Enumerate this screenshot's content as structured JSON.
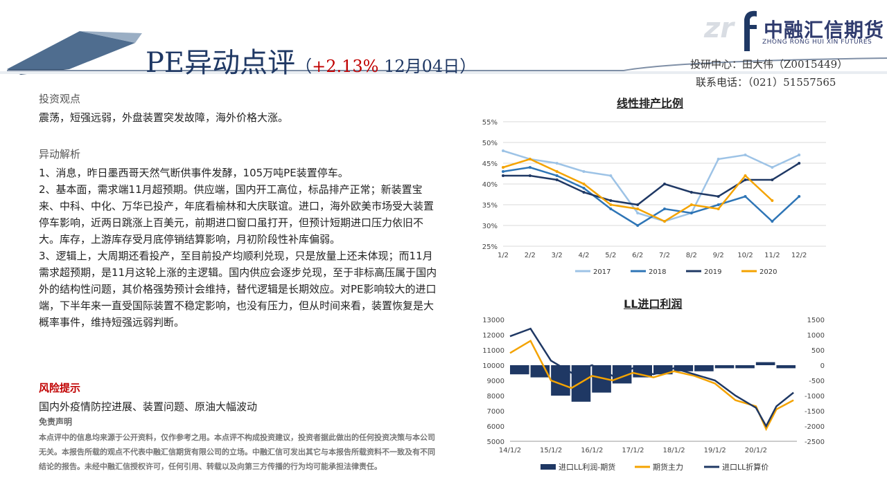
{
  "header": {
    "title": "PE异动点评",
    "paren_open": "（",
    "change": "+2.13%",
    "date": " 12月04日",
    "paren_close": "）",
    "logo_mark": "zr",
    "logo_name": "中融汇信期货",
    "logo_sub": "ZHONG RONG HUI XIN FUTURES",
    "research_line": "投研中心：田大伟（Z0015449）",
    "phone_line": "联系电话：（021）51557565"
  },
  "content": {
    "view_heading": "投资观点",
    "view_text": "震荡，短强远弱，外盘装置突发故障，海外价格大涨。",
    "analysis_heading": "异动解析",
    "analysis_points": [
      "1、消息，昨日墨西哥天然气断供事件发酵，105万吨PE装置停车。",
      "2、基本面，需求端11月超预期。供应端，国内开工高位，标品排产正常；新装置宝来、中科、中化、万华已投产，年底看榆林和大庆联谊。进口，海外欧美市场受大装置停车影响，近两日跳涨上百美元，前期进口窗口虽打开，但预计短期进口压力依旧不大。库存，上游库存受月底停销结算影响，月初阶段性补库偏弱。",
      "3、逻辑上，大周期还看投产，至目前投产均顺利兑现，只是放量上还未体现；而11月需求超预期，是11月这轮上涨的主逻辑。国内供应会逐步兑现，至于非标高压属于国内外的结构性问题，其价格强势预计会维持，替代逻辑是长期效应。对PE影响较大的进口端，下半年来一直受国际装置不稳定影响，也没有压力，但从时间来看，装置恢复是大概率事件，维持短强远弱判断。"
    ],
    "risk_heading": "风险提示",
    "risk_text": "国内外疫情防控进展、装置问题、原油大幅波动",
    "disclaimer_heading": "免责声明",
    "disclaimer_text": "本点评中的信息均来源于公开资料，仅作参考之用。本点评不构成投资建议，投资者据此做出的任何投资决策与本公司无关。本报告所载的观点不代表中融汇信期货有限公司的立场。中融汇信可发出其它与本报告所载资料不一致及有不同结论的报告。未经中融汇信授权许可，任何引用、转载以及向第三方传播的行为均可能承担法律责任。"
  },
  "colors": {
    "title_navy": "#1f3864",
    "accent_red": "#c00000",
    "s2017": "#9dc3e6",
    "s2018": "#2e75b6",
    "s2019": "#1f3864",
    "s2020": "#f4a300",
    "profit_bar": "#1f3864",
    "futures_line": "#f4a300",
    "import_line": "#1f3864"
  },
  "chart_data": [
    {
      "type": "line",
      "title": "线性排产比例",
      "categories": [
        "1/2",
        "2/2",
        "3/2",
        "4/2",
        "5/2",
        "6/2",
        "7/2",
        "8/2",
        "9/2",
        "10/2",
        "11/2",
        "12/2"
      ],
      "ylim": [
        25,
        55
      ],
      "y_ticks": [
        "25%",
        "30%",
        "35%",
        "40%",
        "45%",
        "50%",
        "55%"
      ],
      "legend_position": "bottom",
      "series": [
        {
          "name": "2017",
          "values": [
            48,
            46,
            45,
            43,
            42,
            33,
            31,
            33,
            46,
            47,
            44,
            47
          ]
        },
        {
          "name": "2018",
          "values": [
            43,
            44,
            42,
            39,
            34,
            30,
            34,
            33,
            35,
            37,
            31,
            37
          ]
        },
        {
          "name": "2019",
          "values": [
            42,
            42,
            41,
            38,
            36,
            35,
            40,
            38,
            37,
            41,
            41,
            45
          ]
        },
        {
          "name": "2020",
          "values": [
            44,
            46,
            43,
            40,
            35,
            34,
            31,
            35,
            34,
            42,
            36,
            null
          ]
        }
      ]
    },
    {
      "type": "bar+line",
      "title": "LL进口利润",
      "x_ticks": [
        "14/1/2",
        "15/1/2",
        "16/1/2",
        "17/1/2",
        "18/1/2",
        "19/1/2",
        "20/1/2"
      ],
      "ylim_left": [
        5000,
        13000
      ],
      "ylim_right": [
        -2500,
        1500
      ],
      "left_ticks": [
        "5000",
        "6000",
        "7000",
        "8000",
        "9000",
        "10000",
        "11000",
        "12000",
        "13000"
      ],
      "right_ticks": [
        "-2500",
        "-2000",
        "-1500",
        "-1000",
        "-500",
        "0",
        "500",
        "1000",
        "1500"
      ],
      "legend_position": "bottom",
      "series": [
        {
          "name": "进口LL利润-期货",
          "axis": "right",
          "x": [
            "14/1/2",
            "14/7/2",
            "15/1/2",
            "15/7/2",
            "16/1/2",
            "16/7/2",
            "17/1/2",
            "17/7/2",
            "18/1/2",
            "18/7/2",
            "19/1/2",
            "19/7/2",
            "20/1/2",
            "20/7/2"
          ],
          "values": [
            -300,
            -400,
            -1000,
            -1200,
            -900,
            -600,
            -400,
            -300,
            -200,
            -200,
            -100,
            -100,
            100,
            -100
          ]
        },
        {
          "name": "期货主力",
          "axis": "left",
          "x": [
            "14/1/2",
            "14/7/2",
            "15/1/2",
            "15/7/2",
            "16/1/2",
            "16/7/2",
            "17/1/2",
            "17/7/2",
            "18/1/2",
            "18/7/2",
            "19/1/2",
            "19/7/2",
            "20/1/2",
            "20/4/2",
            "20/7/2",
            "20/12/2"
          ],
          "values": [
            10800,
            11600,
            9000,
            8500,
            9300,
            9000,
            9500,
            9200,
            9600,
            9300,
            8800,
            7700,
            7300,
            5800,
            7100,
            7700
          ]
        },
        {
          "name": "进口LL折算价",
          "axis": "left",
          "x": [
            "14/1/2",
            "14/7/2",
            "15/1/2",
            "15/7/2",
            "16/1/2",
            "16/7/2",
            "17/1/2",
            "17/7/2",
            "18/1/2",
            "18/7/2",
            "19/1/2",
            "19/7/2",
            "20/1/2",
            "20/4/2",
            "20/7/2",
            "20/12/2"
          ],
          "values": [
            11900,
            12400,
            10300,
            9500,
            10000,
            9300,
            9800,
            9400,
            9800,
            9400,
            9000,
            8000,
            7200,
            6000,
            7300,
            8200
          ]
        }
      ]
    }
  ]
}
